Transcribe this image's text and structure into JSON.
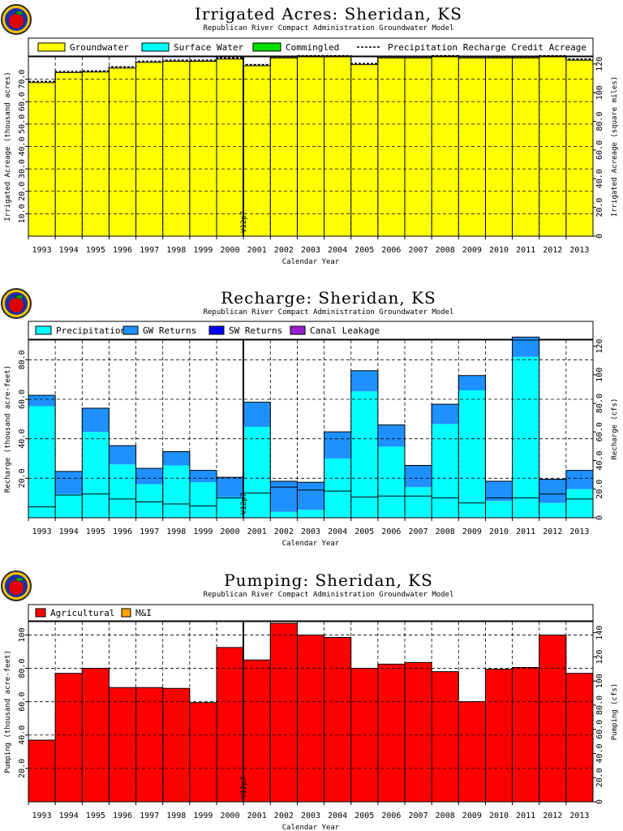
{
  "figure": {
    "logo": "apple-logo-icon",
    "vertical_marker": "V12p7"
  },
  "chart_data": [
    {
      "type": "area",
      "title": "Irrigated Acres: Sheridan, KS",
      "subtitle": "Republican River Compact Administration Groundwater Model",
      "xlabel": "Calendar Year",
      "ylabel": "Irrigated Acreage (thousand acres)",
      "ylabel_right": "Irrigated Acreage (square miles)",
      "categories": [
        "1993",
        "1994",
        "1995",
        "1996",
        "1997",
        "1998",
        "1999",
        "2000",
        "2001",
        "2002",
        "2003",
        "2004",
        "2005",
        "2006",
        "2007",
        "2008",
        "2009",
        "2010",
        "2011",
        "2012",
        "2013"
      ],
      "ylim": [
        0,
        80
      ],
      "yticks": [
        "10.0",
        "20.0",
        "30.0",
        "40.0",
        "50.0",
        "60.0",
        "70.0"
      ],
      "ylim_right": [
        0,
        125
      ],
      "yticks_right": [
        "0",
        "20.0",
        "40.0",
        "60.0",
        "80.0",
        "100",
        "120"
      ],
      "grid": true,
      "legend_position": "top",
      "series": [
        {
          "name": "Groundwater",
          "color": "#ffff00",
          "values": [
            68.5,
            73.0,
            73.2,
            75.0,
            77.5,
            78.0,
            78.0,
            79.0,
            76.0,
            79.5,
            80.0,
            80.0,
            76.5,
            79.5,
            79.5,
            80.0,
            79.5,
            79.5,
            79.5,
            80.0,
            78.5
          ]
        },
        {
          "name": "Surface Water",
          "color": "#00ffff",
          "values": [
            0,
            0,
            0,
            0,
            0,
            0,
            0,
            0,
            0,
            0,
            0,
            0,
            0,
            0,
            0,
            0,
            0,
            0,
            0,
            0,
            0
          ]
        },
        {
          "name": "Commingled",
          "color": "#00e000",
          "values": [
            0,
            0,
            0,
            0,
            0,
            0,
            0,
            0,
            0,
            0,
            0,
            0,
            0,
            0,
            0,
            0,
            0,
            0,
            0,
            0,
            0
          ]
        },
        {
          "name": "Precipitation Recharge Credit Acreage",
          "style": "dashed",
          "values": [
            69.0,
            73.5,
            73.7,
            75.5,
            78.0,
            78.5,
            78.5,
            79.5,
            76.5,
            80.0,
            80.5,
            80.5,
            77.0,
            80.0,
            80.0,
            80.5,
            80.0,
            80.0,
            80.0,
            80.5,
            79.0
          ]
        }
      ]
    },
    {
      "type": "area",
      "title": "Recharge: Sheridan, KS",
      "subtitle": "Republican River Compact Administration Groundwater Model",
      "xlabel": "Calendar Year",
      "ylabel": "Recharge (thousand acre-feet)",
      "ylabel_right": "Recharge (cfs)",
      "categories": [
        "1993",
        "1994",
        "1995",
        "1996",
        "1997",
        "1998",
        "1999",
        "2000",
        "2001",
        "2002",
        "2003",
        "2004",
        "2005",
        "2006",
        "2007",
        "2008",
        "2009",
        "2010",
        "2011",
        "2012",
        "2013"
      ],
      "ylim": [
        0,
        90
      ],
      "yticks": [
        "20.0",
        "40.0",
        "60.0",
        "80.0"
      ],
      "ylim_right": [
        0,
        124.3
      ],
      "yticks_right": [
        "0",
        "20.0",
        "40.0",
        "60.0",
        "80.0",
        "100",
        "120"
      ],
      "grid": true,
      "legend_position": "top",
      "series": [
        {
          "name": "Precipitation",
          "color": "#00ffff",
          "values": [
            56.5,
            12.0,
            43.5,
            27.0,
            17.0,
            26.5,
            18.0,
            10.5,
            46.0,
            3.0,
            4.0,
            30.0,
            64.0,
            36.0,
            15.5,
            47.5,
            64.5,
            8.5,
            81.5,
            7.5,
            14.5
          ]
        },
        {
          "name": "GW Returns",
          "color": "#1e90ff",
          "values": [
            5.5,
            11.5,
            12.0,
            9.5,
            8.0,
            7.0,
            6.0,
            10.0,
            12.5,
            15.5,
            14.0,
            13.5,
            10.5,
            11.0,
            11.0,
            10.0,
            7.5,
            10.0,
            10.0,
            12.0,
            9.5
          ]
        },
        {
          "name": "SW Returns",
          "color": "#0000ff",
          "values": [
            0,
            0,
            0,
            0,
            0,
            0,
            0,
            0,
            0,
            0,
            0,
            0,
            0,
            0,
            0,
            0,
            0,
            0,
            0,
            0,
            0
          ]
        },
        {
          "name": "Canal Leakage",
          "color": "#9a1fd0",
          "values": [
            0,
            0,
            0,
            0,
            0,
            0,
            0,
            0,
            0,
            0,
            0,
            0,
            0,
            0,
            0,
            0,
            0,
            0,
            0,
            0,
            0
          ]
        }
      ]
    },
    {
      "type": "area",
      "title": "Pumping: Sheridan, KS",
      "subtitle": "Republican River Compact Administration Groundwater Model",
      "xlabel": "Calendar Year",
      "ylabel": "Pumping (thousand acre-feet)",
      "ylabel_right": "Pumping (cfs)",
      "categories": [
        "1993",
        "1994",
        "1995",
        "1996",
        "1997",
        "1998",
        "1999",
        "2000",
        "2001",
        "2002",
        "2003",
        "2004",
        "2005",
        "2006",
        "2007",
        "2008",
        "2009",
        "2010",
        "2011",
        "2012",
        "2013"
      ],
      "ylim": [
        0,
        108
      ],
      "yticks": [
        "20.0",
        "40.0",
        "60.0",
        "80.0",
        "100"
      ],
      "ylim_right": [
        0,
        149.2
      ],
      "yticks_right": [
        "0",
        "20.0",
        "40.0",
        "60.0",
        "80.0",
        "100",
        "120",
        "140"
      ],
      "grid": true,
      "legend_position": "top",
      "series": [
        {
          "name": "Agricultural",
          "color": "#ff0000",
          "values": [
            37.0,
            77.0,
            80.0,
            68.5,
            68.5,
            68.0,
            59.5,
            92.5,
            85.0,
            107.0,
            100.0,
            98.5,
            80.0,
            82.5,
            83.5,
            78.0,
            60.0,
            79.5,
            80.5,
            100.0,
            77.0
          ]
        },
        {
          "name": "M&I",
          "color": "#ffa500",
          "values": [
            0,
            0,
            0,
            0,
            0,
            0,
            0,
            0,
            0,
            0,
            0,
            0,
            0,
            0,
            0,
            0,
            0,
            0,
            0,
            0,
            0
          ]
        }
      ]
    }
  ]
}
